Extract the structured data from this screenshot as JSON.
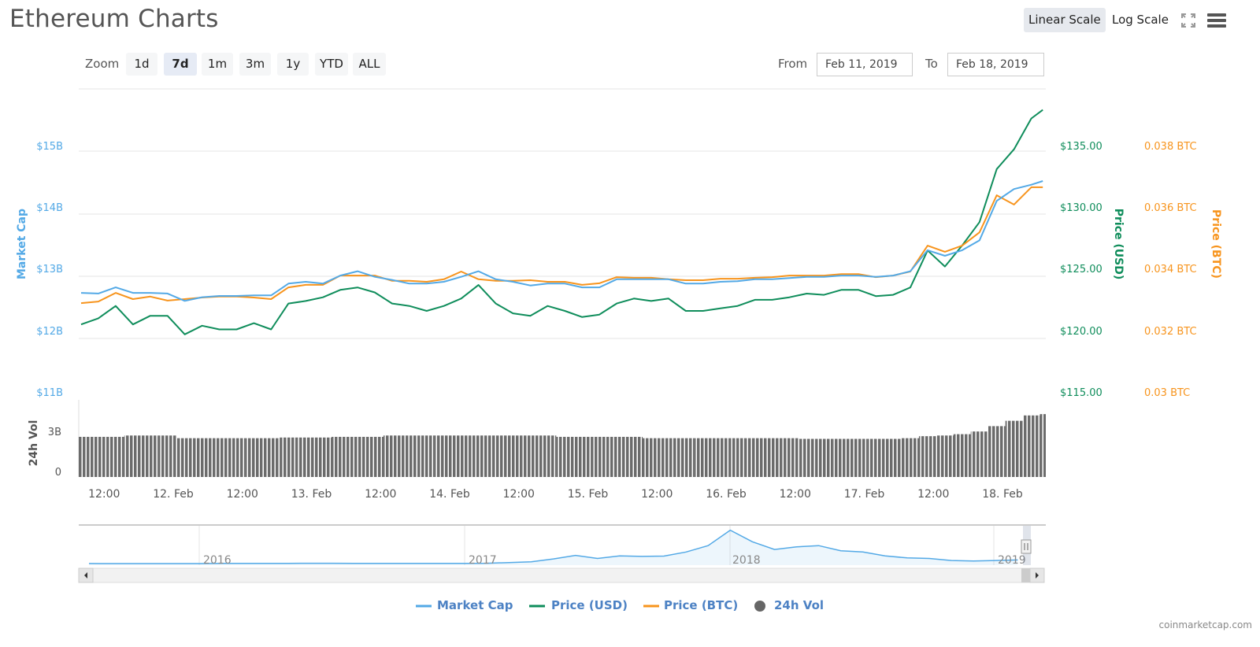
{
  "header": {
    "title": "Ethereum Charts",
    "linear_scale": "Linear Scale",
    "log_scale": "Log Scale"
  },
  "zoom": {
    "label": "Zoom",
    "buttons": [
      "1d",
      "7d",
      "1m",
      "3m",
      "1y",
      "YTD",
      "ALL"
    ],
    "selected": "7d"
  },
  "range": {
    "from_label": "From",
    "from_value": "Feb 11, 2019",
    "to_label": "To",
    "to_value": "Feb 18, 2019"
  },
  "colors": {
    "market_cap": "#53a9e6",
    "price_usd": "#0f8d5b",
    "price_btc": "#f7941d",
    "volume": "#6b6b6b"
  },
  "chart_data": {
    "type": "line",
    "title": "Ethereum Charts",
    "x": {
      "unit": "hours since Feb 11 2019 00:00",
      "start": 8,
      "step": 3,
      "range": [
        7.6,
        175.2
      ],
      "tick_labels": [
        "12:00",
        "12. Feb",
        "12:00",
        "13. Feb",
        "12:00",
        "14. Feb",
        "12:00",
        "15. Feb",
        "12:00",
        "16. Feb",
        "12:00",
        "17. Feb",
        "12:00",
        "18. Feb"
      ],
      "tick_hours": [
        12,
        24,
        36,
        48,
        60,
        72,
        84,
        96,
        108,
        120,
        132,
        144,
        156,
        168
      ]
    },
    "axes": {
      "market_cap": {
        "title": "Market Cap",
        "ticks": [
          "$15B",
          "$14B",
          "$13B",
          "$12B",
          "$11B"
        ],
        "range_billion": [
          11,
          15
        ]
      },
      "price_usd": {
        "title": "Price (USD)",
        "ticks": [
          "$135.00",
          "$130.00",
          "$125.00",
          "$120.00",
          "$115.00"
        ],
        "range": [
          115,
          135
        ]
      },
      "price_btc": {
        "title": "Price (BTC)",
        "ticks": [
          "0.038 BTC",
          "0.036 BTC",
          "0.034 BTC",
          "0.032 BTC",
          "0.03 BTC"
        ],
        "range": [
          0.03,
          0.038
        ]
      },
      "volume": {
        "title": "24h Vol",
        "ticks": [
          "3B",
          "0"
        ],
        "range_billion": [
          0,
          5.5
        ]
      }
    },
    "series": [
      {
        "name": "Market Cap",
        "unit": "billion USD",
        "values": [
          12.61,
          12.6,
          12.7,
          12.61,
          12.61,
          12.6,
          12.48,
          12.54,
          12.56,
          12.56,
          12.57,
          12.57,
          12.76,
          12.79,
          12.76,
          12.89,
          12.96,
          12.87,
          12.82,
          12.76,
          12.76,
          12.79,
          12.87,
          12.96,
          12.83,
          12.79,
          12.73,
          12.76,
          12.76,
          12.7,
          12.7,
          12.83,
          12.83,
          12.83,
          12.83,
          12.76,
          12.76,
          12.79,
          12.8,
          12.83,
          12.83,
          12.85,
          12.87,
          12.87,
          12.89,
          12.89,
          12.87,
          12.89,
          12.96,
          13.3,
          13.21,
          13.3,
          13.46,
          14.1,
          14.29,
          14.36,
          14.42
        ]
      },
      {
        "name": "Price (USD)",
        "values": [
          120.5,
          121.0,
          122.0,
          120.5,
          121.2,
          121.2,
          119.7,
          120.4,
          120.1,
          120.1,
          120.6,
          120.1,
          122.2,
          122.4,
          122.7,
          123.3,
          123.5,
          123.1,
          122.2,
          122.0,
          121.6,
          122.0,
          122.6,
          123.7,
          122.2,
          121.4,
          121.2,
          122.0,
          121.6,
          121.1,
          121.3,
          122.2,
          122.6,
          122.4,
          122.6,
          121.6,
          121.6,
          121.8,
          122.0,
          122.5,
          122.5,
          122.7,
          123.0,
          122.9,
          123.3,
          123.3,
          122.8,
          122.9,
          123.5,
          126.5,
          125.2,
          126.9,
          128.8,
          133.1,
          134.7,
          137.2,
          137.9
        ]
      },
      {
        "name": "Price (BTC)",
        "values": [
          0.03289,
          0.03294,
          0.03322,
          0.03302,
          0.0331,
          0.03297,
          0.03302,
          0.03307,
          0.0331,
          0.0331,
          0.03307,
          0.03302,
          0.0334,
          0.03348,
          0.03348,
          0.03378,
          0.03378,
          0.03378,
          0.03361,
          0.03361,
          0.03358,
          0.03366,
          0.03391,
          0.03366,
          0.03361,
          0.03361,
          0.03363,
          0.03358,
          0.03358,
          0.03348,
          0.03353,
          0.03373,
          0.03371,
          0.03371,
          0.03366,
          0.03363,
          0.03363,
          0.03368,
          0.03368,
          0.03371,
          0.03373,
          0.03378,
          0.03378,
          0.03378,
          0.03383,
          0.03383,
          0.03373,
          0.03378,
          0.03391,
          0.03475,
          0.03455,
          0.03475,
          0.03518,
          0.03638,
          0.03608,
          0.03664,
          0.03664
        ]
      },
      {
        "name": "24h Vol",
        "unit": "billion USD",
        "values": [
          3.0,
          3.0,
          3.0,
          3.1,
          3.1,
          3.1,
          2.9,
          2.9,
          2.9,
          2.9,
          2.9,
          2.9,
          2.95,
          2.95,
          2.95,
          3.0,
          3.0,
          3.0,
          3.1,
          3.1,
          3.1,
          3.1,
          3.1,
          3.1,
          3.1,
          3.1,
          3.1,
          3.1,
          3.0,
          3.0,
          3.0,
          3.0,
          3.0,
          2.9,
          2.9,
          2.9,
          2.9,
          2.9,
          2.9,
          2.9,
          2.9,
          2.9,
          2.85,
          2.85,
          2.85,
          2.85,
          2.85,
          2.85,
          2.9,
          3.05,
          3.1,
          3.2,
          3.4,
          3.8,
          4.2,
          4.6,
          4.7
        ]
      }
    ],
    "navigator": {
      "year_labels": [
        "2016",
        "2017",
        "2018",
        "2019"
      ],
      "start": "2015-08",
      "step": "1 month",
      "unit": "billion USD",
      "values": [
        0.2,
        0.1,
        0.1,
        0.1,
        0.07,
        0.07,
        0.5,
        0.8,
        0.7,
        0.9,
        1.1,
        1.2,
        1.0,
        1.0,
        0.9,
        0.8,
        0.7,
        0.9,
        1.2,
        4,
        7,
        18,
        32,
        20,
        30,
        28,
        29,
        45,
        70,
        130,
        85,
        55,
        65,
        70,
        50,
        45,
        30,
        22,
        20,
        12,
        10,
        12,
        14
      ]
    },
    "legend": {
      "position": "bottom-center",
      "items": [
        "Market Cap",
        "Price (USD)",
        "Price (BTC)",
        "24h Vol"
      ]
    },
    "grid": true
  },
  "credit": "coinmarketcap.com"
}
